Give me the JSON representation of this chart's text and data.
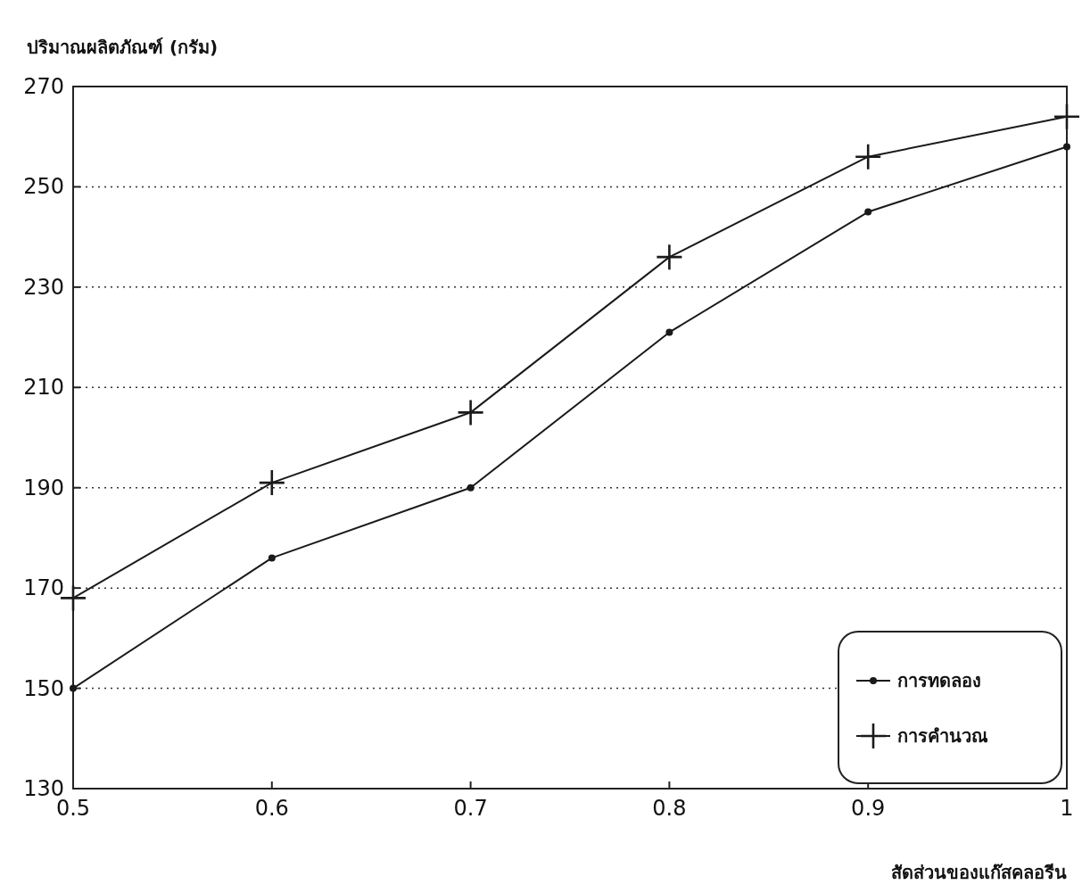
{
  "chart_data": {
    "type": "line",
    "xlabel": "สัดส่วนของแก๊สคลอรีน",
    "ylabel": "ปริมาณผลิตภัณฑ์ (กรัม)",
    "x": [
      0.5,
      0.6,
      0.7,
      0.8,
      0.9,
      1
    ],
    "series": [
      {
        "name": "การทดลอง",
        "color": "#1a1a1a",
        "marker": "circle",
        "values": [
          150,
          176,
          190,
          221,
          245,
          258
        ]
      },
      {
        "name": "การคำนวณ",
        "color": "#1a1a1a",
        "marker": "cross",
        "values": [
          168,
          191,
          205,
          236,
          256,
          264
        ]
      }
    ],
    "xlim": [
      0.5,
      1
    ],
    "xticks": [
      0.5,
      0.6,
      0.7,
      0.8,
      0.9,
      1
    ],
    "ylim": [
      130,
      270
    ],
    "yticks": [
      130,
      150,
      170,
      190,
      210,
      230,
      250,
      270
    ],
    "grid": "y",
    "legend": "bottom right",
    "line_style": "solid"
  }
}
